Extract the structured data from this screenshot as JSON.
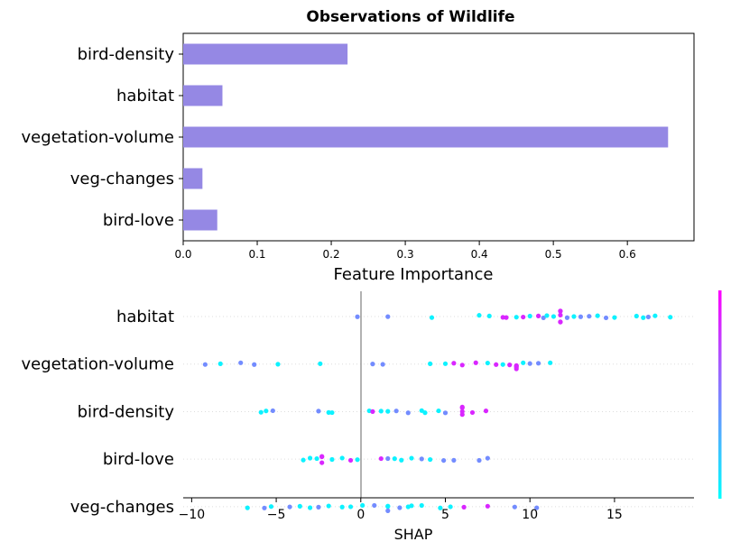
{
  "chart_data": [
    {
      "type": "bar",
      "orientation": "horizontal",
      "title": "Observations of Wildlife",
      "xlabel": "Feature Importance",
      "ylabel": "",
      "categories": [
        "bird-density",
        "habitat",
        "vegetation-volume",
        "veg-changes",
        "bird-love"
      ],
      "values": [
        0.222,
        0.053,
        0.655,
        0.026,
        0.046
      ],
      "xlim": [
        0,
        0.69
      ],
      "xticks": [
        0.0,
        0.1,
        0.2,
        0.3,
        0.4,
        0.5,
        0.6
      ],
      "xtick_labels": [
        "0.0",
        "0.1",
        "0.2",
        "0.3",
        "0.4",
        "0.5",
        "0.6"
      ],
      "bar_color": "#9588e4",
      "grid": false
    },
    {
      "type": "scatter",
      "subtype": "beeswarm",
      "xlabel": "SHAP",
      "ylabel": "",
      "categories": [
        "habitat",
        "vegetation-volume",
        "bird-density",
        "bird-love",
        "veg-changes"
      ],
      "xlim": [
        -10.5,
        19.7
      ],
      "xticks": [
        -10,
        -5,
        0,
        5,
        10,
        15
      ],
      "xtick_labels": [
        "−10",
        "−5",
        "0",
        "5",
        "10",
        "15"
      ],
      "colormap": [
        "#00ffff",
        "#ff00ff"
      ],
      "series": [
        {
          "name": "habitat",
          "points": [
            [
              -0.2,
              0
            ],
            [
              1.6,
              0
            ],
            [
              4.2,
              0
            ],
            [
              7.0,
              0
            ],
            [
              7.6,
              0
            ],
            [
              8.4,
              1
            ],
            [
              8.6,
              1
            ],
            [
              9.2,
              0
            ],
            [
              9.6,
              1
            ],
            [
              10.0,
              0
            ],
            [
              10.5,
              1
            ],
            [
              10.8,
              0
            ],
            [
              11.0,
              0
            ],
            [
              11.4,
              0
            ],
            [
              11.8,
              1
            ],
            [
              11.8,
              1
            ],
            [
              11.8,
              1
            ],
            [
              11.8,
              1
            ],
            [
              11.8,
              1
            ],
            [
              12.2,
              0
            ],
            [
              12.6,
              0
            ],
            [
              13.0,
              0
            ],
            [
              13.5,
              0
            ],
            [
              14.0,
              0
            ],
            [
              14.5,
              0
            ],
            [
              15.0,
              0
            ],
            [
              16.3,
              0
            ],
            [
              16.7,
              0
            ],
            [
              17.0,
              0
            ],
            [
              17.4,
              0
            ],
            [
              18.3,
              0
            ]
          ]
        },
        {
          "name": "vegetation-volume",
          "points": [
            [
              -9.2,
              0
            ],
            [
              -8.3,
              0
            ],
            [
              -7.1,
              0
            ],
            [
              -6.3,
              0
            ],
            [
              -4.9,
              0
            ],
            [
              -2.4,
              0
            ],
            [
              0.7,
              0
            ],
            [
              1.3,
              0
            ],
            [
              4.1,
              0
            ],
            [
              5.0,
              0
            ],
            [
              5.5,
              1
            ],
            [
              6.0,
              1
            ],
            [
              6.8,
              1
            ],
            [
              7.5,
              0
            ],
            [
              8.0,
              1
            ],
            [
              8.4,
              0
            ],
            [
              8.8,
              1
            ],
            [
              9.2,
              1
            ],
            [
              9.2,
              1
            ],
            [
              9.2,
              1
            ],
            [
              9.2,
              1
            ],
            [
              9.6,
              0
            ],
            [
              10.0,
              0
            ],
            [
              10.5,
              0
            ],
            [
              11.2,
              0
            ]
          ]
        },
        {
          "name": "bird-density",
          "points": [
            [
              -5.9,
              0
            ],
            [
              -5.6,
              0
            ],
            [
              -5.2,
              0
            ],
            [
              -2.5,
              0
            ],
            [
              -1.9,
              0
            ],
            [
              -1.7,
              0
            ],
            [
              0.5,
              0
            ],
            [
              0.7,
              1
            ],
            [
              1.2,
              0
            ],
            [
              1.6,
              0
            ],
            [
              2.1,
              0
            ],
            [
              2.8,
              0
            ],
            [
              3.6,
              0
            ],
            [
              3.8,
              0
            ],
            [
              4.6,
              0
            ],
            [
              5.0,
              0
            ],
            [
              6.0,
              1
            ],
            [
              6.0,
              1
            ],
            [
              6.0,
              1
            ],
            [
              6.0,
              1
            ],
            [
              6.6,
              1
            ],
            [
              7.4,
              1
            ]
          ]
        },
        {
          "name": "bird-love",
          "points": [
            [
              -3.4,
              0
            ],
            [
              -3.0,
              0
            ],
            [
              -2.6,
              0
            ],
            [
              -2.3,
              1
            ],
            [
              -2.3,
              1
            ],
            [
              -2.3,
              1
            ],
            [
              -1.7,
              0
            ],
            [
              -1.1,
              0
            ],
            [
              -0.6,
              1
            ],
            [
              -0.2,
              0
            ],
            [
              1.2,
              1
            ],
            [
              1.6,
              0
            ],
            [
              2.0,
              0
            ],
            [
              2.4,
              0
            ],
            [
              3.0,
              0
            ],
            [
              3.6,
              0
            ],
            [
              4.1,
              0
            ],
            [
              4.9,
              0
            ],
            [
              5.5,
              0
            ],
            [
              7.0,
              0
            ],
            [
              7.5,
              0
            ]
          ]
        },
        {
          "name": "veg-changes",
          "points": [
            [
              -6.7,
              0
            ],
            [
              -5.7,
              0
            ],
            [
              -5.3,
              0
            ],
            [
              -4.2,
              0
            ],
            [
              -3.6,
              0
            ],
            [
              -3.0,
              0
            ],
            [
              -2.5,
              0
            ],
            [
              -1.9,
              0
            ],
            [
              -1.1,
              0
            ],
            [
              -0.6,
              0
            ],
            [
              0.1,
              0
            ],
            [
              0.8,
              0
            ],
            [
              1.6,
              0
            ],
            [
              1.6,
              0
            ],
            [
              1.6,
              0
            ],
            [
              2.3,
              0
            ],
            [
              2.8,
              0
            ],
            [
              3.0,
              0
            ],
            [
              3.6,
              0
            ],
            [
              4.7,
              0
            ],
            [
              5.3,
              0
            ],
            [
              6.1,
              1
            ],
            [
              7.5,
              1
            ],
            [
              9.1,
              0
            ],
            [
              10.4,
              0
            ]
          ]
        }
      ]
    }
  ]
}
